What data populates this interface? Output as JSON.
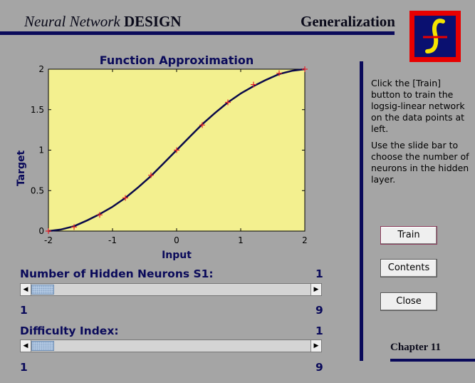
{
  "header": {
    "title_italic": "Neural Network",
    "title_bold": "DESIGN",
    "section": "Generalization"
  },
  "logo": {
    "icon": "script-f-logo-icon",
    "colors": {
      "border": "#e80000",
      "background": "#0a1070",
      "glyph": "#f5e400"
    }
  },
  "chart_data": {
    "type": "line",
    "title": "Function Approximation",
    "xlabel": "Input",
    "ylabel": "Target",
    "xlim": [
      -2,
      2
    ],
    "ylim": [
      0,
      2
    ],
    "xticks": [
      "-2",
      "-1",
      "0",
      "1",
      "2"
    ],
    "yticks": [
      "0",
      "0.5",
      "1",
      "1.5",
      "2"
    ],
    "grid": false,
    "background": "#f3f08f",
    "series": [
      {
        "kind": "scatter",
        "marker": "+",
        "color": "#e8232a",
        "x": [
          -2,
          -1.6,
          -1.2,
          -0.8,
          -0.4,
          0,
          0.4,
          0.8,
          1.2,
          1.6,
          2
        ],
        "y": [
          0,
          0.05,
          0.2,
          0.41,
          0.69,
          1.0,
          1.31,
          1.59,
          1.81,
          1.95,
          2.0
        ]
      },
      {
        "kind": "line",
        "color": "#0a0a4a",
        "x": [
          -2,
          -1.8,
          -1.6,
          -1.4,
          -1.2,
          -1.0,
          -0.8,
          -0.6,
          -0.4,
          -0.2,
          0,
          0.2,
          0.4,
          0.6,
          0.8,
          1.0,
          1.2,
          1.4,
          1.6,
          1.8,
          2
        ],
        "y": [
          0.0,
          0.02,
          0.06,
          0.13,
          0.21,
          0.3,
          0.41,
          0.54,
          0.68,
          0.84,
          1.0,
          1.16,
          1.32,
          1.46,
          1.59,
          1.7,
          1.79,
          1.87,
          1.94,
          1.98,
          2.0
        ]
      }
    ]
  },
  "instructions": [
    "Click the [Train] button to train the logsig-linear network on the data points at left.",
    "Use the slide bar to choose the number of neurons in the hidden layer."
  ],
  "buttons": {
    "train": "Train",
    "contents": "Contents",
    "close": "Close"
  },
  "sliders": {
    "neurons": {
      "label": "Number of Hidden Neurons S1:",
      "value": "1",
      "min": "1",
      "max": "9",
      "level": 0
    },
    "difficulty": {
      "label": "Difficulty Index:",
      "value": "1",
      "min": "1",
      "max": "9",
      "level": 0
    }
  },
  "footer": {
    "chapter": "Chapter 11"
  }
}
